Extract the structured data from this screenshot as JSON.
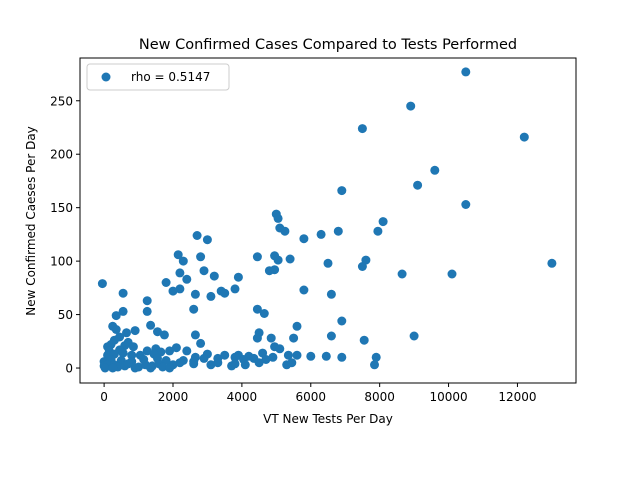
{
  "chart_data": {
    "type": "scatter",
    "title": "New Confirmed Cases Compared to Tests Performed",
    "xlabel": "VT New Tests Per Day",
    "ylabel": "New Confirmed Caeses Per Day",
    "xlim": [
      -700,
      13700
    ],
    "ylim": [
      -14,
      290
    ],
    "xticks": [
      0,
      2000,
      4000,
      6000,
      8000,
      10000,
      12000
    ],
    "yticks": [
      0,
      50,
      100,
      150,
      200,
      250
    ],
    "grid": false,
    "legend_position": "top-left",
    "color": "#1f77b4",
    "series": [
      {
        "name": "rho = 0.5147",
        "points": [
          [
            10500,
            277
          ],
          [
            8900,
            245
          ],
          [
            7500,
            224
          ],
          [
            12200,
            216
          ],
          [
            9600,
            185
          ],
          [
            9100,
            171
          ],
          [
            6900,
            166
          ],
          [
            10500,
            153
          ],
          [
            5000,
            144
          ],
          [
            5050,
            140
          ],
          [
            8100,
            137
          ],
          [
            5100,
            131
          ],
          [
            5250,
            128
          ],
          [
            6800,
            128
          ],
          [
            7950,
            128
          ],
          [
            2700,
            124
          ],
          [
            3000,
            120
          ],
          [
            5800,
            121
          ],
          [
            6300,
            125
          ],
          [
            2150,
            106
          ],
          [
            4450,
            104
          ],
          [
            4950,
            105
          ],
          [
            5400,
            102
          ],
          [
            5050,
            101
          ],
          [
            7600,
            101
          ],
          [
            13000,
            98
          ],
          [
            2300,
            100
          ],
          [
            2800,
            104
          ],
          [
            6500,
            98
          ],
          [
            7500,
            95
          ],
          [
            4950,
            92
          ],
          [
            4800,
            91
          ],
          [
            2900,
            91
          ],
          [
            2200,
            89
          ],
          [
            3200,
            86
          ],
          [
            3900,
            85
          ],
          [
            8650,
            88
          ],
          [
            10100,
            88
          ],
          [
            2400,
            83
          ],
          [
            1800,
            80
          ],
          [
            -50,
            79
          ],
          [
            2200,
            74
          ],
          [
            3800,
            74
          ],
          [
            3400,
            72
          ],
          [
            2000,
            72
          ],
          [
            3500,
            70
          ],
          [
            2650,
            69
          ],
          [
            550,
            70
          ],
          [
            5800,
            73
          ],
          [
            3100,
            67
          ],
          [
            6600,
            69
          ],
          [
            1250,
            63
          ],
          [
            2600,
            55
          ],
          [
            4450,
            55
          ],
          [
            4650,
            51
          ],
          [
            550,
            53
          ],
          [
            1250,
            53
          ],
          [
            350,
            49
          ],
          [
            6900,
            44
          ],
          [
            1350,
            40
          ],
          [
            250,
            39
          ],
          [
            350,
            36
          ],
          [
            5600,
            39
          ],
          [
            900,
            35
          ],
          [
            1550,
            34
          ],
          [
            650,
            33
          ],
          [
            4500,
            33
          ],
          [
            1750,
            31
          ],
          [
            2650,
            31
          ],
          [
            9000,
            30
          ],
          [
            6600,
            30
          ],
          [
            5500,
            28
          ],
          [
            4450,
            28
          ],
          [
            4850,
            28
          ],
          [
            7550,
            26
          ],
          [
            300,
            26
          ],
          [
            450,
            29
          ],
          [
            200,
            22
          ],
          [
            700,
            24
          ],
          [
            2800,
            23
          ],
          [
            100,
            20
          ],
          [
            600,
            21
          ],
          [
            850,
            20
          ],
          [
            1500,
            18
          ],
          [
            2100,
            19
          ],
          [
            4950,
            20
          ],
          [
            5100,
            18
          ],
          [
            150,
            16
          ],
          [
            450,
            17
          ],
          [
            1250,
            16
          ],
          [
            1650,
            15
          ],
          [
            1900,
            16
          ],
          [
            2400,
            16
          ],
          [
            3000,
            13
          ],
          [
            3500,
            12
          ],
          [
            3900,
            12
          ],
          [
            4200,
            11
          ],
          [
            4600,
            14
          ],
          [
            5600,
            12
          ],
          [
            6000,
            11
          ],
          [
            6450,
            11
          ],
          [
            6900,
            10
          ],
          [
            7900,
            10
          ],
          [
            100,
            12
          ],
          [
            300,
            13
          ],
          [
            550,
            14
          ],
          [
            800,
            12
          ],
          [
            1050,
            12
          ],
          [
            1450,
            13
          ],
          [
            2650,
            10
          ],
          [
            2900,
            9
          ],
          [
            3300,
            9
          ],
          [
            3800,
            10
          ],
          [
            4350,
            9
          ],
          [
            5350,
            12
          ],
          [
            0,
            6
          ],
          [
            200,
            8
          ],
          [
            500,
            7
          ],
          [
            800,
            6
          ],
          [
            1150,
            8
          ],
          [
            1550,
            9
          ],
          [
            1800,
            7
          ],
          [
            2300,
            7
          ],
          [
            2600,
            6
          ],
          [
            4050,
            8
          ],
          [
            4700,
            8
          ],
          [
            4900,
            10
          ],
          [
            0,
            2
          ],
          [
            100,
            3
          ],
          [
            300,
            3
          ],
          [
            400,
            1
          ],
          [
            600,
            2
          ],
          [
            700,
            4
          ],
          [
            1000,
            1
          ],
          [
            1200,
            3
          ],
          [
            1400,
            2
          ],
          [
            1600,
            4
          ],
          [
            1700,
            1
          ],
          [
            2000,
            3
          ],
          [
            2200,
            5
          ],
          [
            2600,
            4
          ],
          [
            3100,
            3
          ],
          [
            3300,
            5
          ],
          [
            3700,
            2
          ],
          [
            3800,
            4
          ],
          [
            4100,
            3
          ],
          [
            4500,
            5
          ],
          [
            5300,
            3
          ],
          [
            5450,
            5
          ],
          [
            7850,
            3
          ],
          [
            30,
            0
          ],
          [
            250,
            0
          ],
          [
            900,
            0
          ],
          [
            1350,
            0
          ],
          [
            1900,
            0
          ]
        ]
      }
    ]
  }
}
